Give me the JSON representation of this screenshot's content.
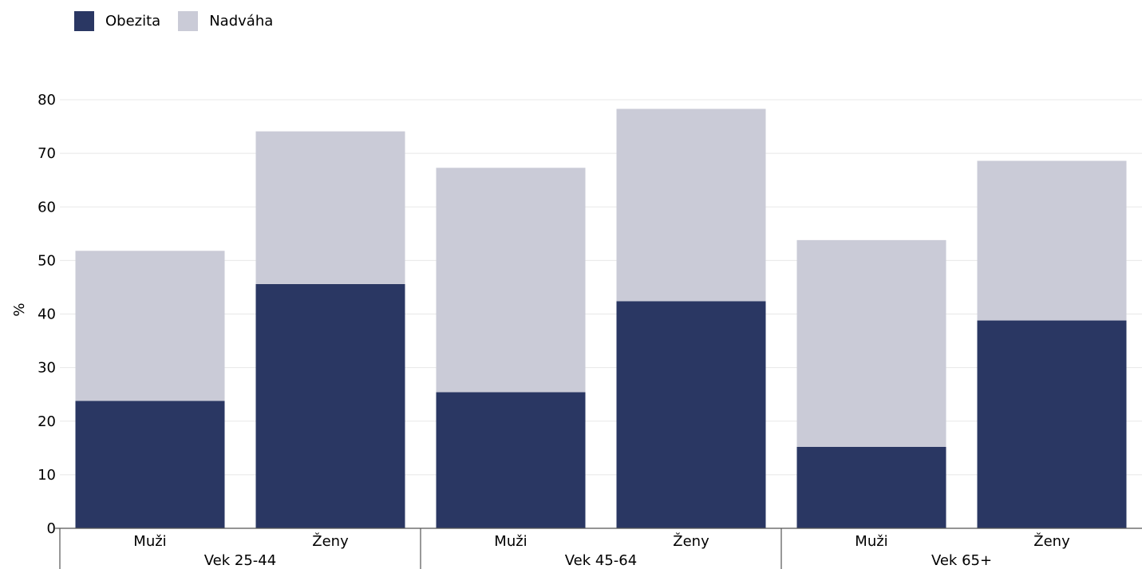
{
  "legend": [
    {
      "label": "Obezita",
      "color": "#2a3763"
    },
    {
      "label": "Nadváha",
      "color": "#cacbd7"
    }
  ],
  "chart_data": {
    "type": "bar",
    "stacked": true,
    "ylabel": "%",
    "ylim": [
      0,
      80
    ],
    "yticks": [
      0,
      10,
      20,
      30,
      40,
      50,
      60,
      70,
      80
    ],
    "grid": true,
    "legend_position": "top-left",
    "categories": [
      "Muži",
      "Ženy",
      "Muži",
      "Ženy",
      "Muži",
      "Ženy"
    ],
    "groups": [
      {
        "label": "Vek 25-44",
        "categories": [
          "Muži",
          "Ženy"
        ]
      },
      {
        "label": "Vek 45-64",
        "categories": [
          "Muži",
          "Ženy"
        ]
      },
      {
        "label": "Vek 65+",
        "categories": [
          "Muži",
          "Ženy"
        ]
      }
    ],
    "series": [
      {
        "name": "Obezita",
        "color": "#2a3763",
        "values": [
          23.8,
          45.6,
          25.4,
          42.4,
          15.2,
          38.8
        ]
      },
      {
        "name": "Nadváha",
        "color": "#cacbd7",
        "values": [
          28.0,
          28.5,
          41.9,
          35.9,
          38.6,
          29.8
        ]
      }
    ]
  }
}
